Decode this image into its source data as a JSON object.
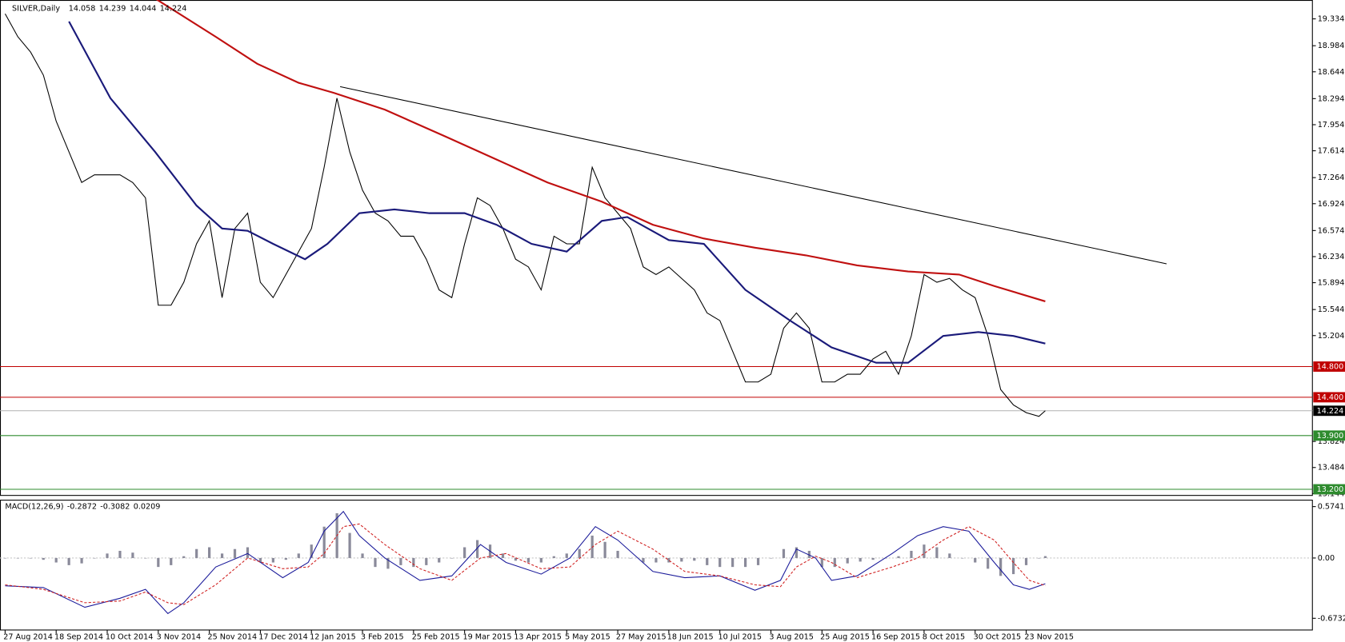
{
  "chart_data": [
    {
      "type": "price",
      "title": "SILVER,Daily",
      "last_bar": [
        14.058,
        14.239,
        14.044,
        14.224
      ],
      "xlim": [
        -1.6,
        409.7
      ],
      "xticks": [
        {
          "value": 0,
          "label": "27 Aug 2014"
        },
        {
          "value": 16,
          "label": "18 Sep 2014"
        },
        {
          "value": 32,
          "label": "10 Oct 2014"
        },
        {
          "value": 48,
          "label": "3 Nov 2014"
        },
        {
          "value": 64,
          "label": "25 Nov 2014"
        },
        {
          "value": 80,
          "label": "17 Dec 2014"
        },
        {
          "value": 96,
          "label": "12 Jan 2015"
        },
        {
          "value": 112,
          "label": "3 Feb 2015"
        },
        {
          "value": 128,
          "label": "25 Feb 2015"
        },
        {
          "value": 144,
          "label": "19 Mar 2015"
        },
        {
          "value": 160,
          "label": "13 Apr 2015"
        },
        {
          "value": 176,
          "label": "5 May 2015"
        },
        {
          "value": 192,
          "label": "27 May 2015"
        },
        {
          "value": 208,
          "label": "18 Jun 2015"
        },
        {
          "value": 224,
          "label": "10 Jul 2015"
        },
        {
          "value": 240,
          "label": "3 Aug 2015"
        },
        {
          "value": 256,
          "label": "25 Aug 2015"
        },
        {
          "value": 272,
          "label": "16 Sep 2015"
        },
        {
          "value": 288,
          "label": "8 Oct 2015"
        },
        {
          "value": 304,
          "label": "30 Oct 2015"
        },
        {
          "value": 320,
          "label": "23 Nov 2015"
        }
      ],
      "ylim": [
        13.12,
        19.58
      ],
      "yticks": [
        19.334,
        18.984,
        18.644,
        18.294,
        17.954,
        17.614,
        17.264,
        16.924,
        16.574,
        16.234,
        15.894,
        15.544,
        15.204,
        13.824,
        13.484,
        13.144
      ],
      "levels": [
        {
          "value": 14.8,
          "label": "14.800",
          "color": "#c00000"
        },
        {
          "value": 14.4,
          "label": "14.400",
          "color": "#c00000"
        },
        {
          "value": 14.224,
          "label": "14.224",
          "color": "#000000"
        },
        {
          "value": 13.9,
          "label": "13.900",
          "color": "#2e8b2e"
        },
        {
          "value": 13.2,
          "label": "13.200",
          "color": "#2e8b2e"
        }
      ],
      "series": [
        {
          "color": "#000000",
          "width": 1,
          "x": [
            0,
            4,
            8,
            12,
            16,
            20,
            24,
            28,
            32,
            36,
            40,
            44,
            48,
            52,
            56,
            60,
            64,
            68,
            72,
            76,
            80,
            84,
            88,
            92,
            96,
            100,
            104,
            108,
            112,
            116,
            120,
            124,
            128,
            132,
            136,
            140,
            144,
            148,
            152,
            156,
            160,
            164,
            168,
            172,
            176,
            180,
            184,
            188,
            192,
            196,
            200,
            204,
            208,
            212,
            216,
            220,
            224,
            228,
            232,
            236,
            240,
            244,
            248,
            252,
            256,
            260,
            264,
            268,
            272,
            276,
            280,
            284,
            288,
            292,
            296,
            300,
            304,
            308,
            312,
            316,
            320,
            324,
            326
          ],
          "values": [
            19.4,
            19.1,
            18.9,
            18.6,
            18.0,
            17.6,
            17.2,
            17.3,
            17.3,
            17.3,
            17.2,
            17.0,
            15.6,
            15.6,
            15.9,
            16.4,
            16.7,
            15.7,
            16.6,
            16.8,
            15.9,
            15.7,
            16.0,
            16.3,
            16.6,
            17.4,
            18.3,
            17.6,
            17.1,
            16.8,
            16.7,
            16.5,
            16.5,
            16.2,
            15.8,
            15.7,
            16.4,
            17.0,
            16.9,
            16.6,
            16.2,
            16.1,
            15.8,
            16.5,
            16.4,
            16.4,
            17.4,
            17.0,
            16.8,
            16.6,
            16.1,
            16.0,
            16.1,
            15.95,
            15.8,
            15.5,
            15.4,
            15.0,
            14.6,
            14.6,
            14.7,
            15.3,
            15.5,
            15.3,
            14.6,
            14.6,
            14.7,
            14.7,
            14.9,
            15.0,
            14.7,
            15.2,
            16.0,
            15.9,
            15.95,
            15.8,
            15.7,
            15.2,
            14.5,
            14.3,
            14.2,
            14.15,
            14.224
          ]
        },
        {
          "color": "#1a1a7a",
          "width": 2,
          "x": [
            20,
            33,
            47,
            60,
            68,
            76,
            84,
            94,
            101,
            111,
            122,
            133,
            144,
            154,
            165,
            176,
            187,
            195,
            208,
            219,
            232,
            246,
            259,
            273,
            283,
            294,
            305,
            316,
            326
          ],
          "values": [
            19.3,
            18.3,
            17.6,
            16.9,
            16.6,
            16.57,
            16.4,
            16.2,
            16.4,
            16.8,
            16.85,
            16.8,
            16.8,
            16.65,
            16.4,
            16.3,
            16.7,
            16.75,
            16.45,
            16.4,
            15.8,
            15.4,
            15.05,
            14.85,
            14.85,
            15.2,
            15.25,
            15.2,
            15.1
          ]
        },
        {
          "color": "#c01010",
          "width": 2,
          "x": [
            47,
            66,
            79,
            92,
            103,
            119,
            138,
            154,
            170,
            187,
            203,
            219,
            235,
            251,
            267,
            283,
            299,
            310,
            326
          ],
          "values": [
            19.6,
            19.1,
            18.75,
            18.5,
            18.37,
            18.15,
            17.8,
            17.5,
            17.2,
            16.95,
            16.65,
            16.47,
            16.35,
            16.25,
            16.12,
            16.04,
            16.0,
            15.85,
            15.65
          ]
        },
        {
          "color": "#000000",
          "width": 1,
          "x": [
            105,
            364
          ],
          "values": [
            18.45,
            16.14
          ]
        }
      ]
    },
    {
      "type": "macd",
      "title": "MACD(12,26,9)",
      "last_values": [
        -0.2872,
        -0.3082,
        0.0209
      ],
      "xlim": [
        -1.6,
        409.7
      ],
      "ylim": [
        -0.804,
        0.651
      ],
      "yticks": [
        0.5741,
        {
          "value": 0,
          "label": "0.00"
        },
        -0.6732
      ],
      "histogram": {
        "color": "#8a8a9a",
        "x": [
          0,
          4,
          8,
          12,
          16,
          20,
          24,
          28,
          32,
          36,
          40,
          44,
          48,
          52,
          56,
          60,
          64,
          68,
          72,
          76,
          80,
          84,
          88,
          92,
          96,
          100,
          104,
          108,
          112,
          116,
          120,
          124,
          128,
          132,
          136,
          140,
          144,
          148,
          152,
          156,
          160,
          164,
          168,
          172,
          176,
          180,
          184,
          188,
          192,
          196,
          200,
          204,
          208,
          212,
          216,
          220,
          224,
          228,
          232,
          236,
          240,
          244,
          248,
          252,
          256,
          260,
          264,
          268,
          272,
          276,
          280,
          284,
          288,
          292,
          296,
          300,
          304,
          308,
          312,
          316,
          320,
          324,
          326
        ],
        "values": [
          0.0,
          0.0,
          0.0,
          -0.02,
          -0.05,
          -0.08,
          -0.06,
          0.0,
          0.05,
          0.08,
          0.06,
          0.0,
          -0.1,
          -0.08,
          0.02,
          0.1,
          0.12,
          0.05,
          0.1,
          0.12,
          -0.05,
          -0.05,
          -0.02,
          0.05,
          0.15,
          0.35,
          0.5,
          0.28,
          0.05,
          -0.1,
          -0.12,
          -0.08,
          -0.1,
          -0.08,
          -0.05,
          0.0,
          0.12,
          0.2,
          0.15,
          0.05,
          -0.03,
          -0.05,
          -0.05,
          0.02,
          0.05,
          0.1,
          0.25,
          0.18,
          0.08,
          0.0,
          -0.05,
          -0.05,
          -0.05,
          -0.04,
          -0.03,
          -0.08,
          -0.1,
          -0.1,
          -0.1,
          -0.08,
          0.0,
          0.1,
          0.12,
          0.08,
          -0.1,
          -0.1,
          -0.06,
          -0.04,
          -0.02,
          0.0,
          0.02,
          0.08,
          0.15,
          0.12,
          0.05,
          0.0,
          -0.05,
          -0.12,
          -0.2,
          -0.18,
          -0.08,
          0.0,
          0.0209
        ]
      },
      "series": [
        {
          "color": "#1a1a9a",
          "dash": false,
          "x": [
            0,
            12,
            25,
            36,
            44,
            51,
            56,
            66,
            76,
            87,
            95,
            100,
            106,
            111,
            119,
            130,
            140,
            149,
            157,
            168,
            177,
            185,
            192,
            203,
            213,
            224,
            235,
            243,
            248,
            254,
            259,
            267,
            278,
            286,
            294,
            302,
            310,
            316,
            321,
            326
          ],
          "values": [
            -0.31,
            -0.33,
            -0.55,
            -0.45,
            -0.35,
            -0.62,
            -0.5,
            -0.1,
            0.05,
            -0.22,
            -0.05,
            0.3,
            0.52,
            0.25,
            0.0,
            -0.25,
            -0.2,
            0.15,
            -0.05,
            -0.18,
            0.0,
            0.35,
            0.2,
            -0.15,
            -0.22,
            -0.2,
            -0.36,
            -0.25,
            0.1,
            0.0,
            -0.25,
            -0.2,
            0.05,
            0.25,
            0.35,
            0.3,
            -0.05,
            -0.3,
            -0.35,
            -0.2872
          ]
        },
        {
          "color": "#d02020",
          "dash": true,
          "x": [
            0,
            12,
            25,
            36,
            44,
            51,
            56,
            66,
            76,
            87,
            95,
            100,
            106,
            111,
            119,
            130,
            140,
            149,
            157,
            168,
            177,
            185,
            192,
            203,
            213,
            224,
            235,
            243,
            248,
            254,
            259,
            267,
            278,
            286,
            294,
            302,
            310,
            316,
            321,
            326
          ],
          "values": [
            -0.3,
            -0.35,
            -0.5,
            -0.48,
            -0.38,
            -0.5,
            -0.52,
            -0.3,
            0.0,
            -0.12,
            -0.1,
            0.05,
            0.35,
            0.38,
            0.15,
            -0.12,
            -0.25,
            0.0,
            0.05,
            -0.12,
            -0.1,
            0.15,
            0.3,
            0.1,
            -0.15,
            -0.2,
            -0.3,
            -0.32,
            -0.1,
            0.02,
            -0.05,
            -0.22,
            -0.1,
            0.0,
            0.2,
            0.35,
            0.2,
            -0.05,
            -0.25,
            -0.3082
          ]
        }
      ]
    }
  ]
}
